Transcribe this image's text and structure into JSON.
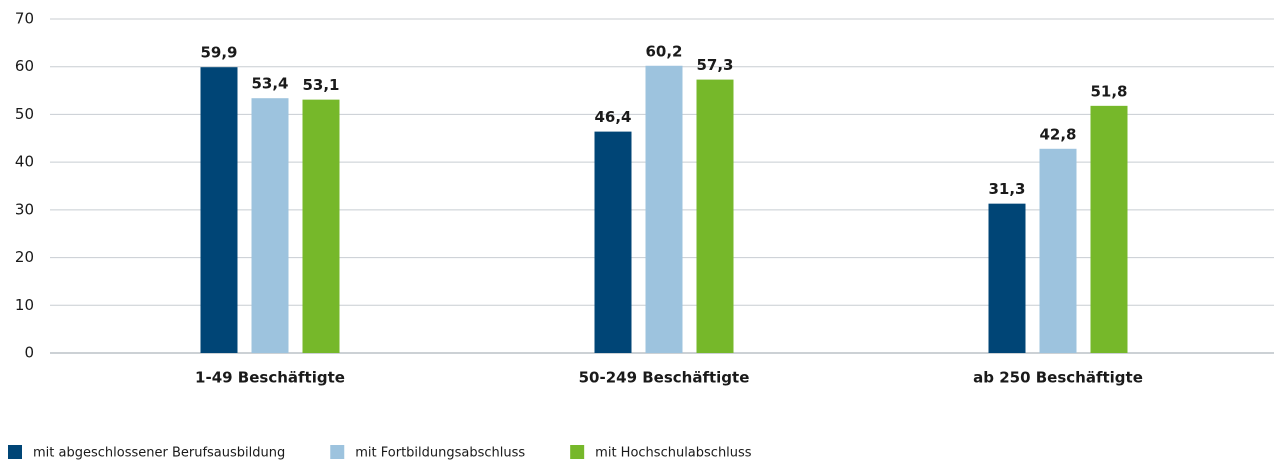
{
  "chart_data": {
    "type": "bar",
    "categories": [
      "1-49 Beschäftigte",
      "50-249 Beschäftigte",
      "ab 250 Beschäftigte"
    ],
    "series": [
      {
        "name": "mit abgeschlossener Berufsausbildung",
        "color": "#004576",
        "values": [
          59.9,
          46.4,
          31.3
        ],
        "value_labels": [
          "59,9",
          "46,4",
          "31,3"
        ]
      },
      {
        "name": "mit Fortbildungsabschluss",
        "color": "#9dc3de",
        "values": [
          53.4,
          60.2,
          42.8
        ],
        "value_labels": [
          "53,4",
          "60,2",
          "42,8"
        ]
      },
      {
        "name": "mit Hochschulabschluss",
        "color": "#76b82a",
        "values": [
          53.1,
          57.3,
          51.8
        ],
        "value_labels": [
          "53,1",
          "57,3",
          "51,8"
        ]
      }
    ],
    "ylim": [
      0,
      70
    ],
    "yticks": [
      0,
      10,
      20,
      30,
      40,
      50,
      60,
      70
    ],
    "grid": true,
    "legend": "bottom"
  }
}
